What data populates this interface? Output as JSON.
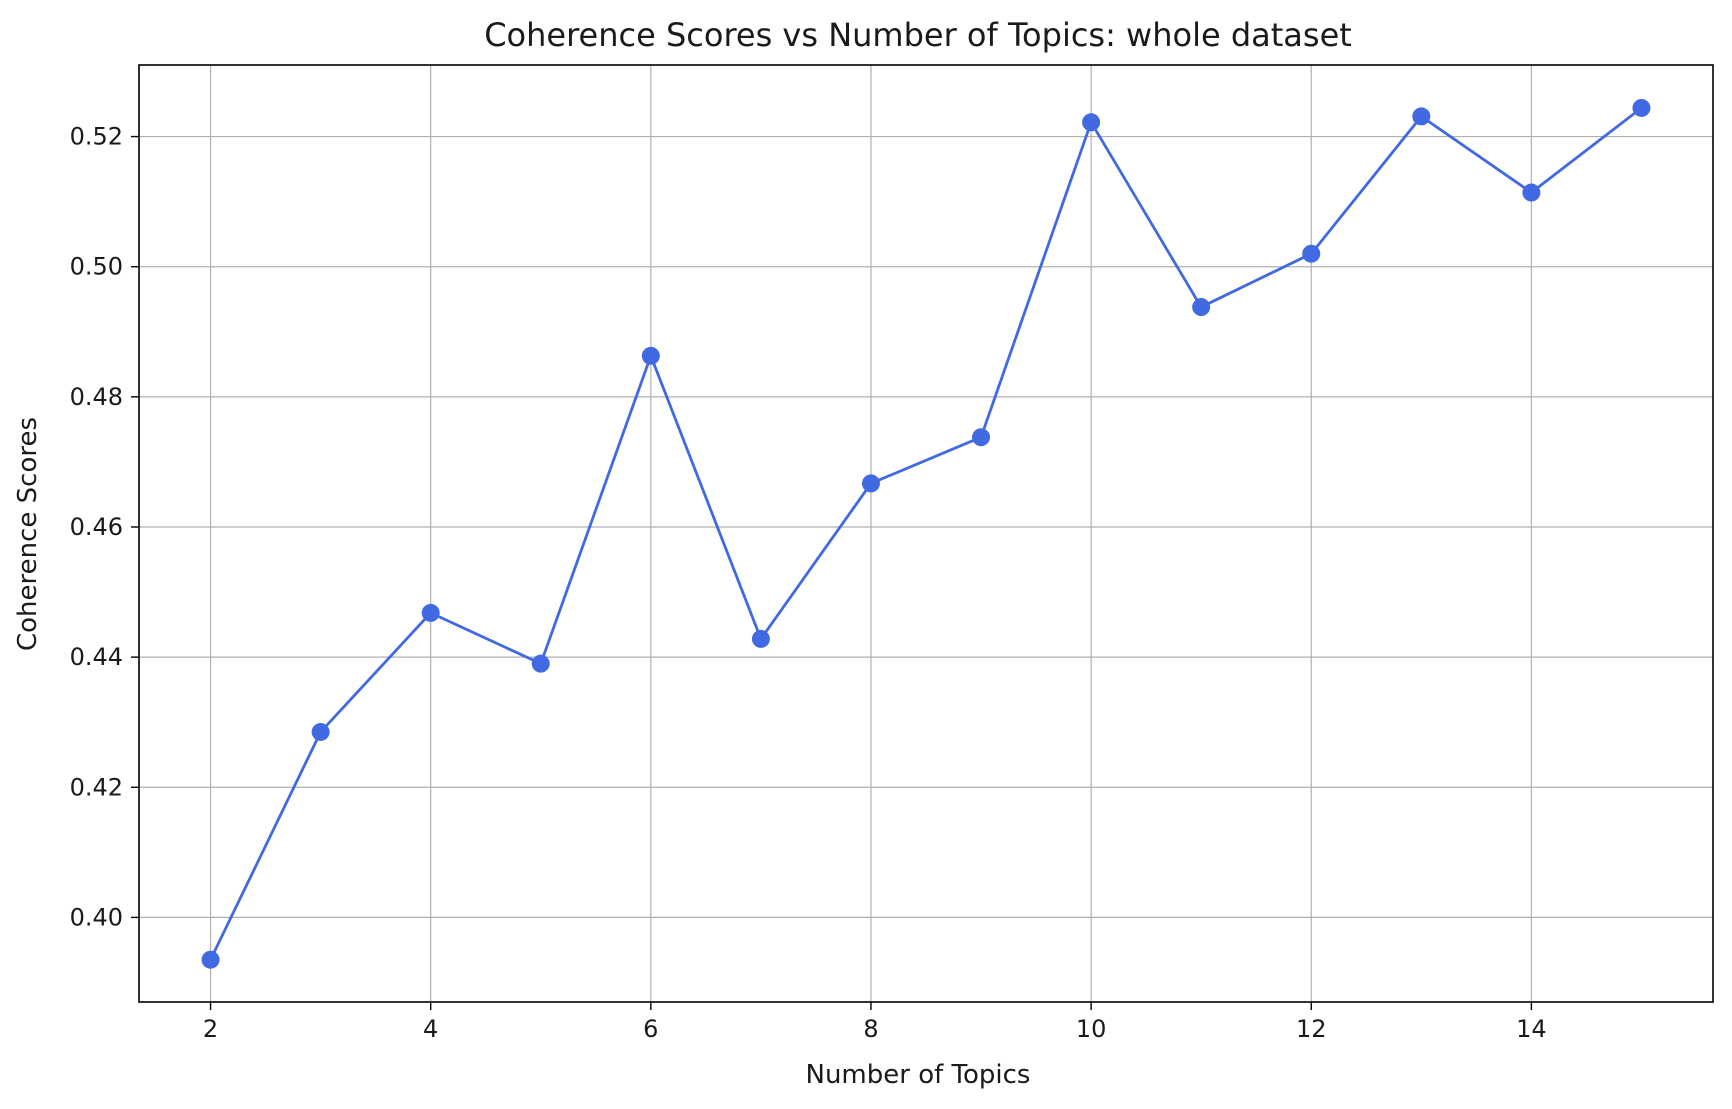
{
  "chart_data": {
    "type": "line",
    "title": "Coherence Scores vs Number of Topics: whole dataset",
    "xlabel": "Number of Topics",
    "ylabel": "Coherence Scores",
    "x": [
      2,
      3,
      4,
      5,
      6,
      7,
      8,
      9,
      10,
      11,
      12,
      13,
      14,
      15
    ],
    "series": [
      {
        "values": [
          0.3935,
          0.4285,
          0.4468,
          0.439,
          0.4863,
          0.4428,
          0.4667,
          0.4738,
          0.5222,
          0.4938,
          0.502,
          0.5231,
          0.5114,
          0.5244
        ],
        "color": "#4169e1",
        "marker": "circle"
      }
    ],
    "xlim": [
      1.35,
      15.65
    ],
    "ylim": [
      0.387,
      0.531
    ],
    "xticks": [
      2,
      4,
      6,
      8,
      10,
      12,
      14
    ],
    "xtick_labels": [
      "2",
      "4",
      "6",
      "8",
      "10",
      "12",
      "14"
    ],
    "yticks": [
      0.4,
      0.42,
      0.44,
      0.46,
      0.48,
      0.5,
      0.52
    ],
    "ytick_labels": [
      "0.40",
      "0.42",
      "0.44",
      "0.46",
      "0.48",
      "0.50",
      "0.52"
    ],
    "grid": true
  }
}
